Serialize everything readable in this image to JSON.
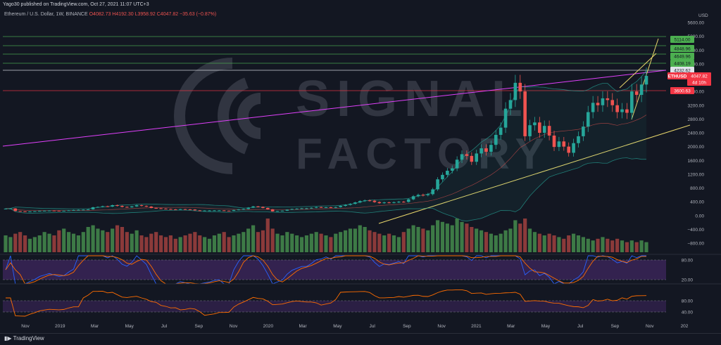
{
  "header": {
    "published": "Yago30 published on TradingView.com, Oct 27, 2021 11:07 UTC+3",
    "symbol": "Ethereum / U.S. Dollar, 1W, BINANCE",
    "ohlc": "O4082.73  H4192.30  L3958.92  C4047.82  −35.63 (−0.87%)"
  },
  "watermark": {
    "line1": "SIGNAL",
    "line2": "FACTORY"
  },
  "footer": {
    "brand": "TradingView"
  },
  "colors": {
    "bg": "#131722",
    "up": "#26a69a",
    "down": "#ef5350",
    "vol_up": "#3d7a46",
    "vol_down": "#8b3a3a",
    "green_line": "#4caf50",
    "red_line": "#f23645",
    "magenta": "#e040fb",
    "yellow": "#e8d66b",
    "purple_band": "#4a2a6e"
  },
  "chart_data": {
    "type": "candlestick",
    "symbol": "ETHUSD",
    "ylim": [
      -800,
      5600
    ],
    "y_ticks": [
      5600,
      5200,
      4800,
      4400,
      4000,
      3600,
      3200,
      2800,
      2400,
      2000,
      1600,
      1200,
      800,
      400,
      0,
      -400,
      -800
    ],
    "x_ticks": [
      "Nov",
      "2019",
      "Mar",
      "May",
      "Jul",
      "Sep",
      "Nov",
      "2020",
      "Mar",
      "May",
      "Jul",
      "Sep",
      "Nov",
      "2021",
      "Mar",
      "May",
      "Jul",
      "Sep",
      "Nov",
      "202"
    ],
    "current_price": {
      "label": "ETHUSD",
      "price": "4047.82",
      "countdown": "4d 10h"
    },
    "price_labels": [
      {
        "value": "5114.00",
        "color": "#4caf50"
      },
      {
        "value": "4848.96",
        "color": "#4caf50"
      },
      {
        "value": "4649.96",
        "color": "#4caf50"
      },
      {
        "value": "4408.19",
        "color": "#4caf50"
      },
      {
        "value": "4232.62",
        "color": "#e0e3eb"
      },
      {
        "value": "3600.63",
        "color": "#f23645"
      }
    ],
    "axis_unit": "USD",
    "weekly_close": [
      200,
      205,
      130,
      120,
      110,
      118,
      125,
      135,
      140,
      145,
      140,
      135,
      138,
      150,
      160,
      165,
      170,
      180,
      240,
      250,
      270,
      260,
      300,
      280,
      250,
      240,
      265,
      300,
      280,
      260,
      220,
      210,
      200,
      190,
      180,
      175,
      185,
      180,
      175,
      150,
      140,
      145,
      148,
      150,
      150,
      140,
      135,
      160,
      175,
      190,
      230,
      265,
      250,
      220,
      180,
      120,
      130,
      140,
      170,
      190,
      200,
      210,
      210,
      225,
      245,
      235,
      240,
      230,
      245,
      280,
      310,
      340,
      380,
      420,
      440,
      430,
      390,
      360,
      380,
      375,
      385,
      400,
      395,
      470,
      560,
      600,
      590,
      620,
      760,
      1050,
      1180,
      1300,
      1370,
      1620,
      1780,
      1730,
      1560,
      1800,
      1950,
      1850,
      2050,
      2340,
      2550,
      3100,
      3350,
      3850,
      3600,
      2300,
      2620,
      2700,
      2400,
      2600,
      2320,
      1990,
      2150,
      2000,
      1820,
      2100,
      2300,
      2580,
      3000,
      3270,
      3200,
      3400,
      3350,
      3200,
      3000,
      3080,
      2980,
      3600,
      3500,
      3800,
      4050
    ],
    "weekly_volume": [
      0.5,
      0.45,
      0.55,
      0.6,
      0.5,
      0.4,
      0.45,
      0.5,
      0.6,
      0.55,
      0.5,
      0.65,
      0.7,
      0.6,
      0.55,
      0.5,
      0.6,
      0.75,
      0.8,
      0.7,
      0.65,
      0.6,
      0.7,
      0.8,
      0.75,
      0.6,
      0.55,
      0.65,
      0.5,
      0.45,
      0.55,
      0.6,
      0.5,
      0.45,
      0.5,
      0.4,
      0.45,
      0.5,
      0.55,
      0.6,
      0.5,
      0.45,
      0.4,
      0.5,
      0.55,
      0.6,
      0.45,
      0.5,
      0.55,
      0.6,
      0.7,
      0.8,
      0.6,
      0.65,
      1.0,
      0.7,
      0.55,
      0.5,
      0.6,
      0.55,
      0.5,
      0.45,
      0.5,
      0.55,
      0.6,
      0.55,
      0.5,
      0.45,
      0.55,
      0.6,
      0.65,
      0.7,
      0.7,
      0.8,
      0.75,
      0.65,
      0.6,
      0.55,
      0.5,
      0.55,
      0.5,
      0.45,
      0.6,
      0.7,
      0.8,
      0.75,
      0.7,
      0.65,
      0.8,
      0.95,
      0.9,
      0.85,
      0.8,
      1.0,
      0.9,
      0.85,
      0.75,
      0.7,
      0.65,
      0.6,
      0.55,
      0.5,
      0.55,
      0.65,
      0.7,
      0.95,
      0.85,
      1.0,
      0.7,
      0.6,
      0.55,
      0.5,
      0.55,
      0.5,
      0.45,
      0.4,
      0.5,
      0.55,
      0.5,
      0.45,
      0.4,
      0.35,
      0.4,
      0.45,
      0.4,
      0.35,
      0.4,
      0.35,
      0.3,
      0.35,
      0.3,
      0.35,
      0.3
    ],
    "stoch_ticks": [
      80,
      20
    ],
    "rsi_ticks": [
      80,
      40
    ]
  }
}
